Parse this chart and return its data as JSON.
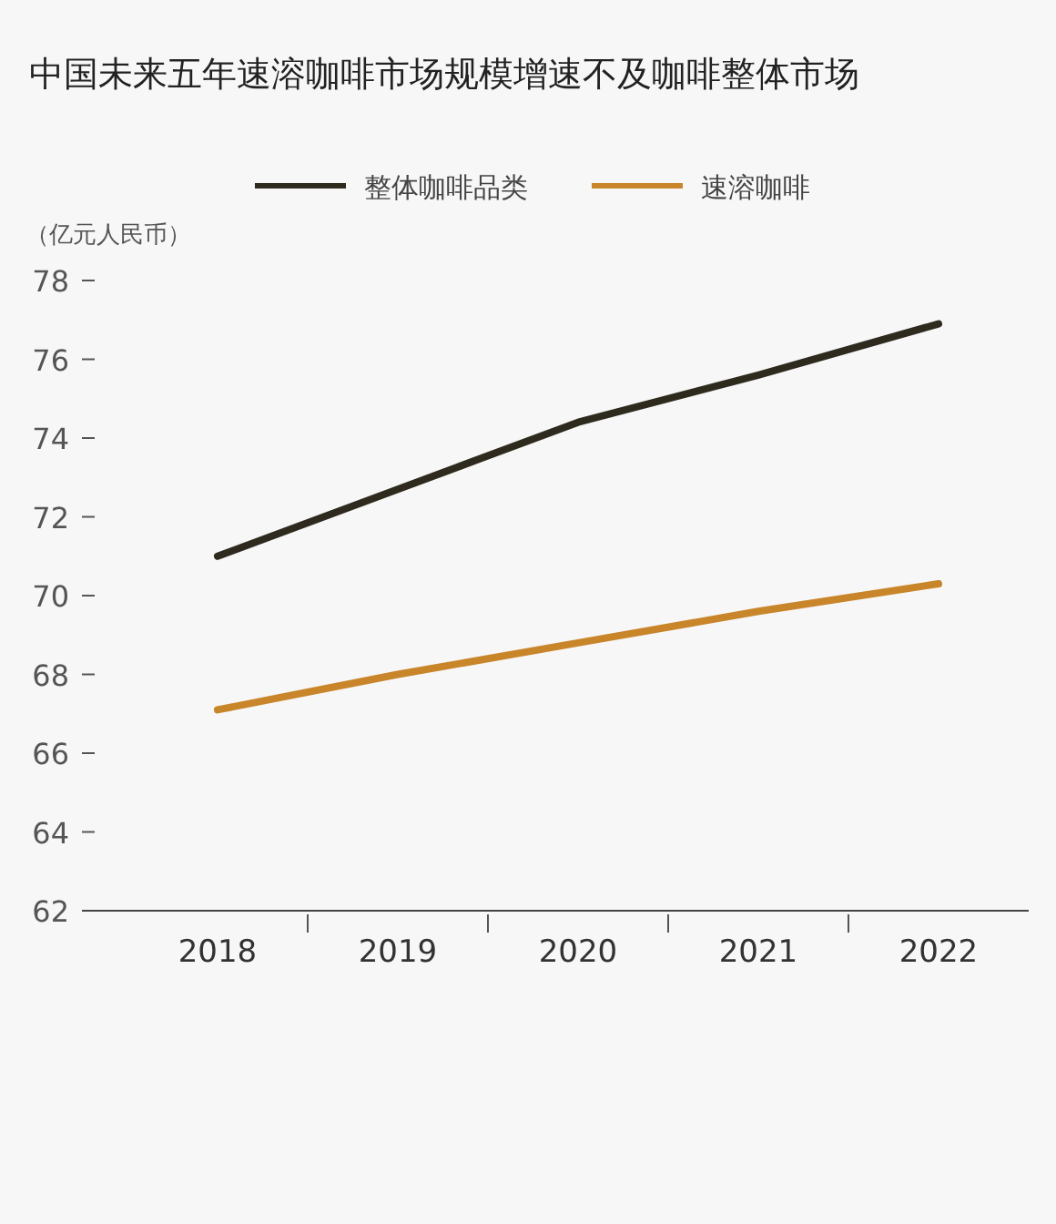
{
  "chart_data": {
    "type": "line",
    "title": "中国未来五年速溶咖啡市场规模增速不及咖啡整体市场",
    "ylabel": "（亿元人民币）",
    "categories": [
      "2018",
      "2019",
      "2020",
      "2021",
      "2022"
    ],
    "series": [
      {
        "name": "整体咖啡品类",
        "color": "#2e2a1e",
        "values": [
          71.0,
          72.7,
          74.4,
          75.6,
          76.9
        ]
      },
      {
        "name": "速溶咖啡",
        "color": "#c9852a",
        "values": [
          67.1,
          68.0,
          68.8,
          69.6,
          70.3
        ]
      }
    ],
    "ylim": [
      62,
      78
    ],
    "yticks": [
      62,
      64,
      66,
      68,
      70,
      72,
      74,
      76,
      78
    ],
    "legend": "top"
  }
}
